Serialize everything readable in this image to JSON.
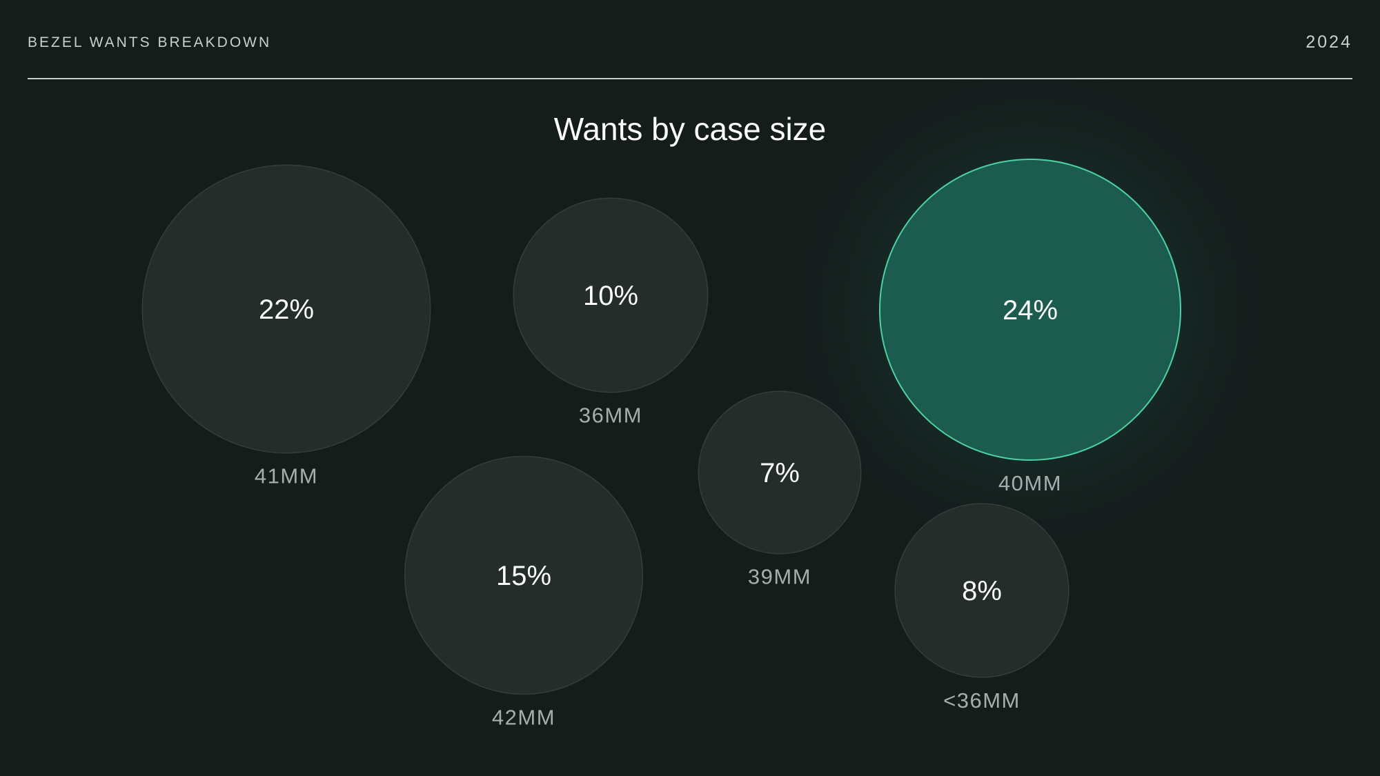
{
  "header": {
    "brand": "BEZEL WANTS BREAKDOWN",
    "year": "2024"
  },
  "chart_data": {
    "type": "bubble",
    "title": "Wants by case size",
    "points": [
      {
        "label": "41MM",
        "value": 22,
        "value_label": "22%",
        "highlight": false
      },
      {
        "label": "36MM",
        "value": 10,
        "value_label": "10%",
        "highlight": false
      },
      {
        "label": "40MM",
        "value": 24,
        "value_label": "24%",
        "highlight": true
      },
      {
        "label": "39MM",
        "value": 7,
        "value_label": "7%",
        "highlight": false
      },
      {
        "label": "42MM",
        "value": 15,
        "value_label": "15%",
        "highlight": false
      },
      {
        "label": "<36MM",
        "value": 8,
        "value_label": "8%",
        "highlight": false
      }
    ],
    "colors": {
      "background": "#151d1b",
      "bubble_fill": "#252d2b",
      "bubble_stroke": "#333d3a",
      "highlight_fill": "#1b5c4e",
      "highlight_stroke": "#4cd3a5",
      "value_text": "#ffffff",
      "category_text": "#a6aeab"
    }
  }
}
